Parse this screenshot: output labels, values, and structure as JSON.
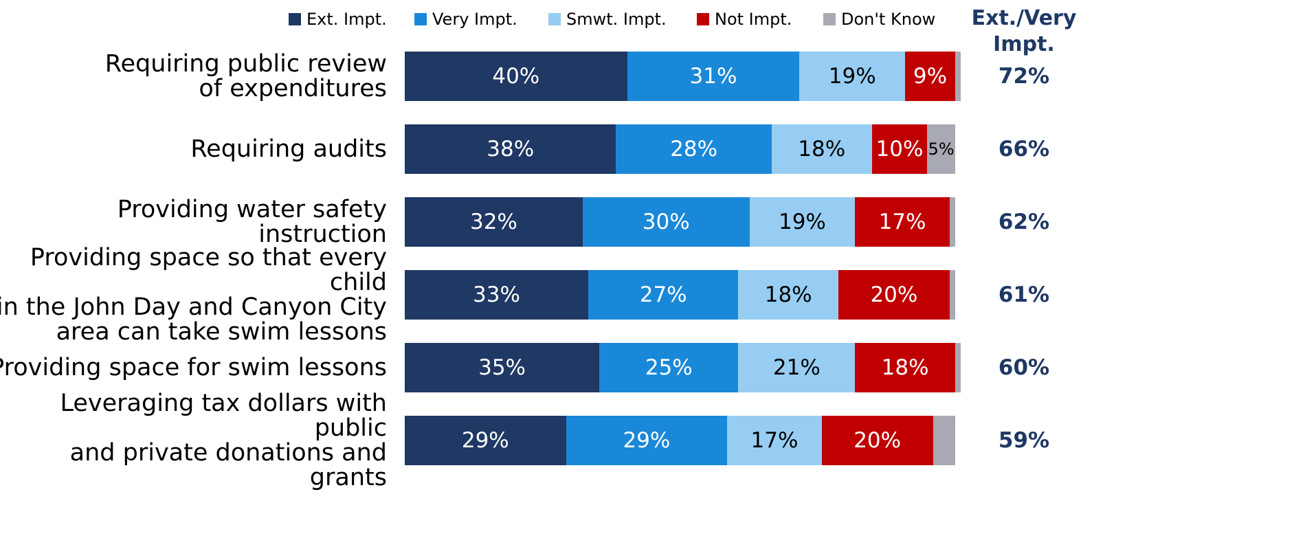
{
  "chart_data": {
    "type": "stacked-bar-horizontal",
    "categories": [
      "Requiring public review\nof expenditures",
      "Requiring audits",
      "Providing water safety instruction",
      "Providing space so that every child\nin the John Day and Canyon City\narea can take swim lessons",
      "Providing space for swim lessons",
      "Leveraging tax dollars with public\nand private donations and grants"
    ],
    "xlim": [
      0,
      100
    ],
    "series": [
      {
        "name": "Ext. Impt.",
        "color": "#1f3864",
        "label_color": "#ffffff",
        "values": [
          40,
          38,
          32,
          33,
          35,
          29
        ],
        "value_labels": [
          "40%",
          "38%",
          "32%",
          "33%",
          "35%",
          "29%"
        ]
      },
      {
        "name": "Very Impt.",
        "color": "#1a88d8",
        "label_color": "#ffffff",
        "values": [
          31,
          28,
          30,
          27,
          25,
          29
        ],
        "value_labels": [
          "31%",
          "28%",
          "30%",
          "27%",
          "25%",
          "29%"
        ]
      },
      {
        "name": "Smwt. Impt.",
        "color": "#97cdf2",
        "label_color": "#000000",
        "values": [
          19,
          18,
          19,
          18,
          21,
          17
        ],
        "value_labels": [
          "19%",
          "18%",
          "19%",
          "18%",
          "21%",
          "17%"
        ]
      },
      {
        "name": "Not Impt.",
        "color": "#c00000",
        "label_color": "#ffffff",
        "values": [
          9,
          10,
          17,
          20,
          18,
          20
        ],
        "value_labels": [
          "9%",
          "10%",
          "17%",
          "20%",
          "18%",
          "20%"
        ]
      },
      {
        "name": "Don't Know",
        "color": "#a9a9b4",
        "label_color": "#000000",
        "values": [
          1,
          5,
          1,
          1,
          1,
          4
        ],
        "value_labels": [
          null,
          "5%",
          null,
          null,
          null,
          null
        ]
      }
    ],
    "net": {
      "name": "Ext./Very Impt.",
      "values": [
        72,
        66,
        62,
        61,
        60,
        59
      ],
      "value_labels": [
        "72%",
        "66%",
        "62%",
        "61%",
        "60%",
        "59%"
      ]
    }
  }
}
